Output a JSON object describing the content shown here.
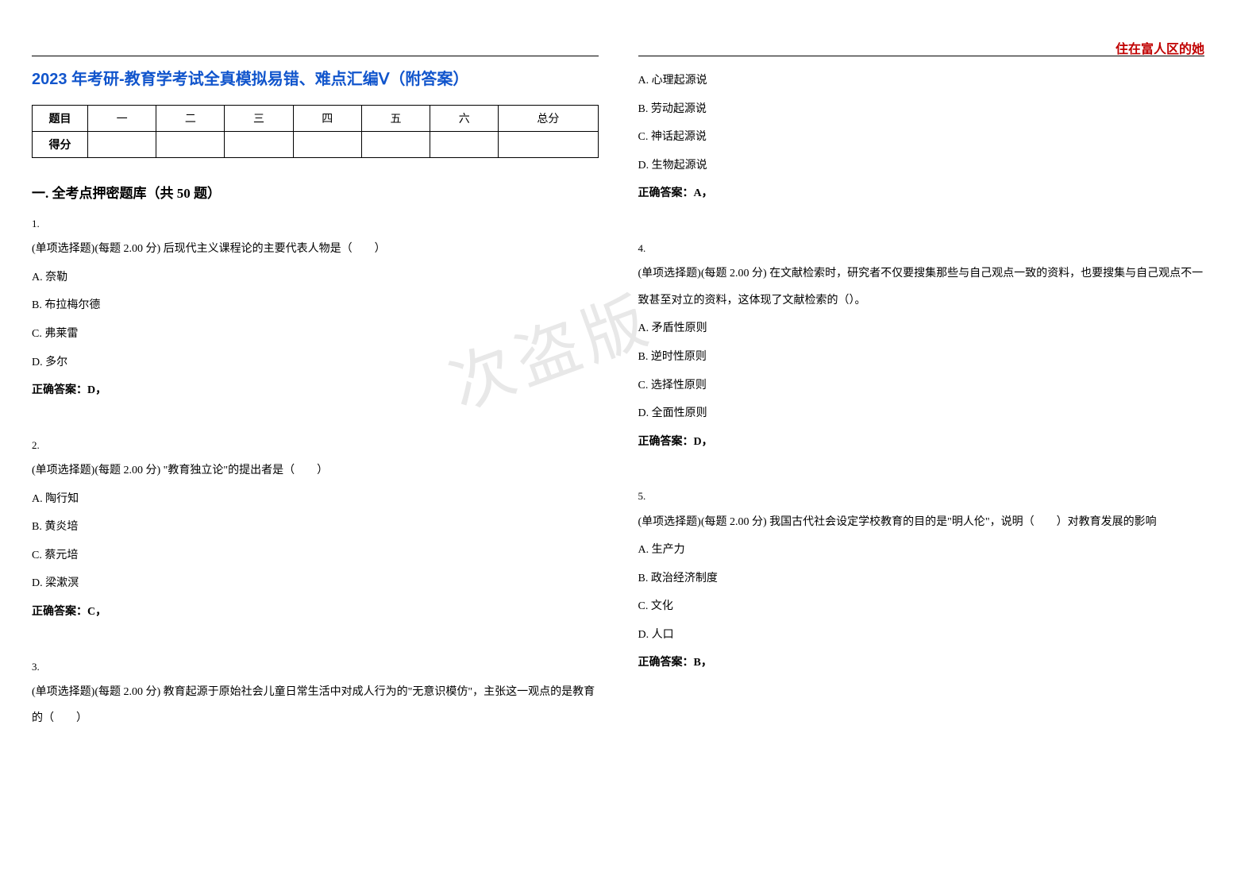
{
  "brand": "住在富人区的她",
  "title": "2023 年考研-教育学考试全真模拟易错、难点汇编Ⅴ（附答案）",
  "watermark": "次盗版",
  "scoreTable": {
    "row1": [
      "题目",
      "一",
      "二",
      "三",
      "四",
      "五",
      "六",
      "总分"
    ],
    "row2Label": "得分"
  },
  "sectionTitle": "一. 全考点押密题库（共 50 题）",
  "questions": [
    {
      "num": "1.",
      "stem": "(单项选择题)(每题 2.00 分) 后现代主义课程论的主要代表人物是（　　）",
      "options": [
        "A. 奈勒",
        "B. 布拉梅尔德",
        "C. 弗莱雷",
        "D. 多尔"
      ],
      "answer": "正确答案：D，"
    },
    {
      "num": "2.",
      "stem": "(单项选择题)(每题 2.00 分) \"教育独立论\"的提出者是（　　）",
      "options": [
        "A. 陶行知",
        "B. 黄炎培",
        "C. 蔡元培",
        "D. 梁漱溟"
      ],
      "answer": "正确答案：C，"
    },
    {
      "num": "3.",
      "stem": "(单项选择题)(每题 2.00 分) 教育起源于原始社会儿童日常生活中对成人行为的\"无意识模仿\"，主张这一观点的是教育的（　　）",
      "options": [
        "A. 心理起源说",
        "B. 劳动起源说",
        "C. 神话起源说",
        "D. 生物起源说"
      ],
      "answer": "正确答案：A，"
    },
    {
      "num": "4.",
      "stem": "(单项选择题)(每题 2.00 分) 在文献检索时，研究者不仅要搜集那些与自己观点一致的资料，也要搜集与自己观点不一致甚至对立的资料，这体现了文献检索的（）。",
      "options": [
        "A. 矛盾性原则",
        "B. 逆时性原则",
        "C. 选择性原则",
        "D. 全面性原则"
      ],
      "answer": "正确答案：D，"
    },
    {
      "num": "5.",
      "stem": "(单项选择题)(每题 2.00 分) 我国古代社会设定学校教育的目的是\"明人伦\"，说明（　　）对教育发展的影响",
      "options": [
        "A. 生产力",
        "B. 政治经济制度",
        "C. 文化",
        "D. 人口"
      ],
      "answer": "正确答案：B，"
    }
  ]
}
